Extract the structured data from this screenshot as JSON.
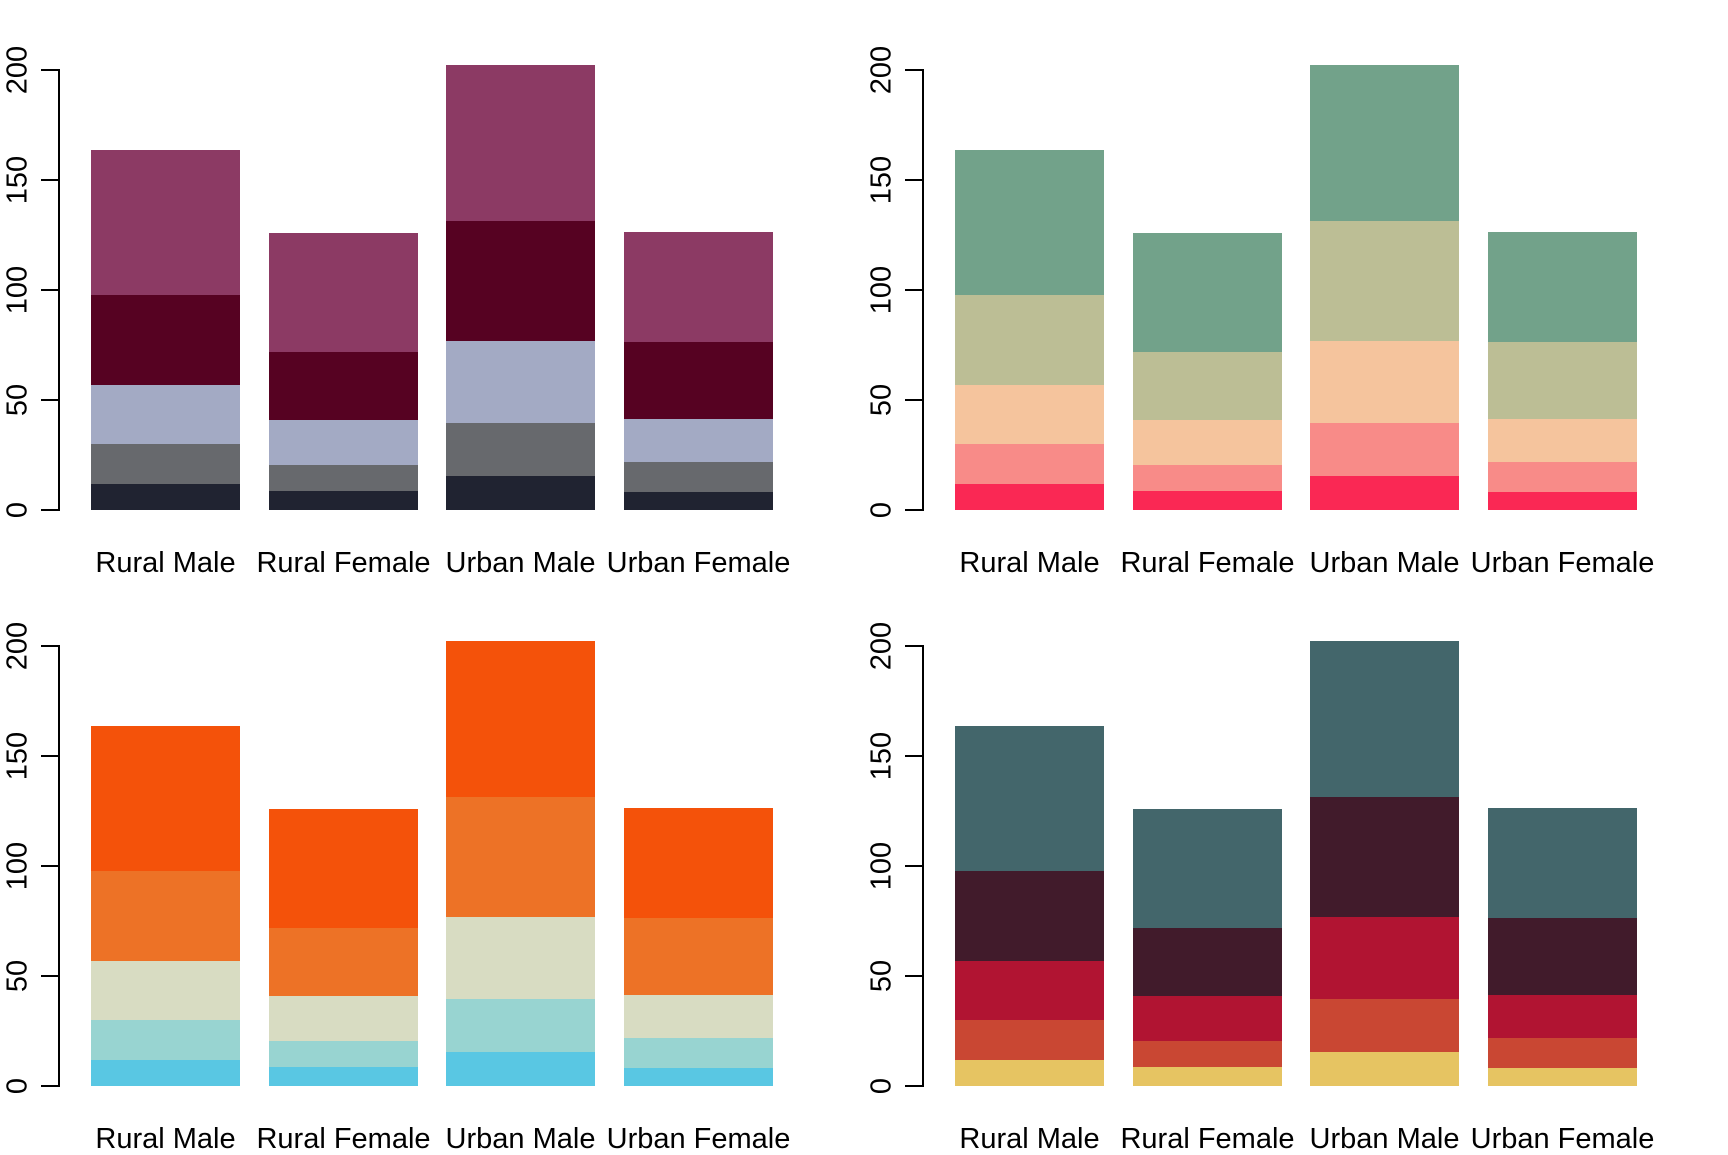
{
  "figure": {
    "background": "#FFFFFF",
    "axis_color": "#000000",
    "text_color": "#000000"
  },
  "chart_data": [
    {
      "position": "top-left",
      "type": "bar",
      "stacked": true,
      "title": "",
      "xlabel": "",
      "ylabel": "",
      "grid": false,
      "legend": "none",
      "ylim": [
        0,
        200
      ],
      "yticks": [
        0,
        50,
        100,
        150,
        200
      ],
      "categories": [
        "Rural Male",
        "Rural Female",
        "Urban Male",
        "Urban Female"
      ],
      "totals": [
        163.7,
        125.9,
        202.4,
        126.4
      ],
      "series": [
        {
          "color": "#202331",
          "values": [
            11.7,
            8.7,
            15.4,
            8.4
          ]
        },
        {
          "color": "#67696D",
          "values": [
            18.1,
            11.7,
            24.3,
            13.6
          ]
        },
        {
          "color": "#A3AAC4",
          "values": [
            26.9,
            20.3,
            37.0,
            19.3
          ]
        },
        {
          "color": "#560222",
          "values": [
            41.0,
            30.9,
            54.6,
            35.1
          ]
        },
        {
          "color": "#8C3A64",
          "values": [
            66.0,
            54.3,
            71.1,
            50.0
          ]
        }
      ]
    },
    {
      "position": "top-right",
      "type": "bar",
      "stacked": true,
      "title": "",
      "xlabel": "",
      "ylabel": "",
      "grid": false,
      "legend": "none",
      "ylim": [
        0,
        200
      ],
      "yticks": [
        0,
        50,
        100,
        150,
        200
      ],
      "categories": [
        "Rural Male",
        "Rural Female",
        "Urban Male",
        "Urban Female"
      ],
      "totals": [
        163.7,
        125.9,
        202.4,
        126.4
      ],
      "series": [
        {
          "color": "#FA2854",
          "values": [
            11.7,
            8.7,
            15.4,
            8.4
          ]
        },
        {
          "color": "#F88B88",
          "values": [
            18.1,
            11.7,
            24.3,
            13.6
          ]
        },
        {
          "color": "#F5C49D",
          "values": [
            26.9,
            20.3,
            37.0,
            19.3
          ]
        },
        {
          "color": "#BCBE95",
          "values": [
            41.0,
            30.9,
            54.6,
            35.1
          ]
        },
        {
          "color": "#72A28A",
          "values": [
            66.0,
            54.3,
            71.1,
            50.0
          ]
        }
      ]
    },
    {
      "position": "bottom-left",
      "type": "bar",
      "stacked": true,
      "title": "",
      "xlabel": "",
      "ylabel": "",
      "grid": false,
      "legend": "none",
      "ylim": [
        0,
        200
      ],
      "yticks": [
        0,
        50,
        100,
        150,
        200
      ],
      "categories": [
        "Rural Male",
        "Rural Female",
        "Urban Male",
        "Urban Female"
      ],
      "totals": [
        163.7,
        125.9,
        202.4,
        126.4
      ],
      "series": [
        {
          "color": "#59C7E3",
          "values": [
            11.7,
            8.7,
            15.4,
            8.4
          ]
        },
        {
          "color": "#98D4D1",
          "values": [
            18.1,
            11.7,
            24.3,
            13.6
          ]
        },
        {
          "color": "#D8DCC2",
          "values": [
            26.9,
            20.3,
            37.0,
            19.3
          ]
        },
        {
          "color": "#ED7226",
          "values": [
            41.0,
            30.9,
            54.6,
            35.1
          ]
        },
        {
          "color": "#F4520A",
          "values": [
            66.0,
            54.3,
            71.1,
            50.0
          ]
        }
      ]
    },
    {
      "position": "bottom-right",
      "type": "bar",
      "stacked": true,
      "title": "",
      "xlabel": "",
      "ylabel": "",
      "grid": false,
      "legend": "none",
      "ylim": [
        0,
        200
      ],
      "yticks": [
        0,
        50,
        100,
        150,
        200
      ],
      "categories": [
        "Rural Male",
        "Rural Female",
        "Urban Male",
        "Urban Female"
      ],
      "totals": [
        163.7,
        125.9,
        202.4,
        126.4
      ],
      "series": [
        {
          "color": "#E6C462",
          "values": [
            11.7,
            8.7,
            15.4,
            8.4
          ]
        },
        {
          "color": "#C94733",
          "values": [
            18.1,
            11.7,
            24.3,
            13.6
          ]
        },
        {
          "color": "#B11432",
          "values": [
            26.9,
            20.3,
            37.0,
            19.3
          ]
        },
        {
          "color": "#411B2B",
          "values": [
            41.0,
            30.9,
            54.6,
            35.1
          ]
        },
        {
          "color": "#43666B",
          "values": [
            66.0,
            54.3,
            71.1,
            50.0
          ]
        }
      ]
    }
  ]
}
